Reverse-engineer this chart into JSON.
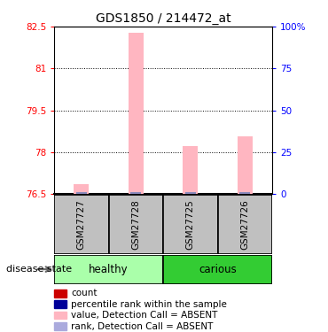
{
  "title": "GDS1850 / 214472_at",
  "samples": [
    "GSM27727",
    "GSM27728",
    "GSM27725",
    "GSM27726"
  ],
  "ylim_left": [
    76.5,
    82.5
  ],
  "yticks_left": [
    76.5,
    78.0,
    79.5,
    81.0,
    82.5
  ],
  "ytick_labels_left": [
    "76.5",
    "78",
    "79.5",
    "81",
    "82.5"
  ],
  "ylim_right": [
    0,
    100
  ],
  "yticks_right": [
    0,
    25,
    50,
    75,
    100
  ],
  "ytick_labels_right": [
    "0",
    "25",
    "50",
    "75",
    "100%"
  ],
  "bar_values": [
    76.87,
    82.28,
    78.21,
    78.58
  ],
  "bar_color_pink": "#FFB6C1",
  "bar_color_blue": "#8888BB",
  "sample_box_color": "#C0C0C0",
  "healthy_box_color": "#AAFFAA",
  "carious_box_color": "#33CC33",
  "legend_items": [
    {
      "color": "#CC0000",
      "label": "count"
    },
    {
      "color": "#000099",
      "label": "percentile rank within the sample"
    },
    {
      "color": "#FFB6C1",
      "label": "value, Detection Call = ABSENT"
    },
    {
      "color": "#AAAADD",
      "label": "rank, Detection Call = ABSENT"
    }
  ]
}
